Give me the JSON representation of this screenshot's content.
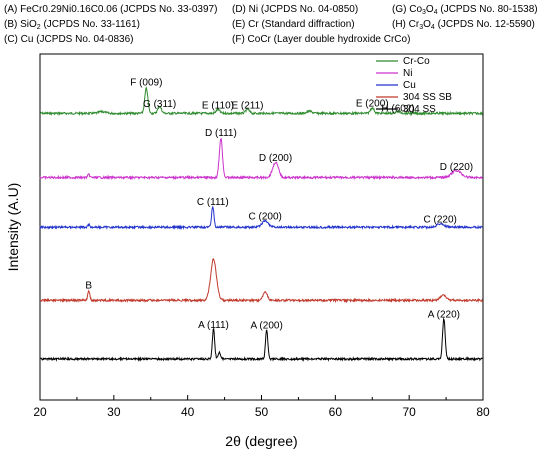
{
  "header_lines": [
    [
      "(A) FeCr0.29Ni0.16C0.06 (JCPDS No. 33-0397)",
      "(D) Ni (JCPDS No. 04-0850)",
      "(G) Co",
      "3",
      "O",
      "4",
      " (JCPDS No. 80-1538)"
    ],
    [
      "(B) SiO",
      "2",
      " (JCPDS No. 33-1161)",
      "(E) Cr (Standard diffraction)",
      "(H) Cr",
      "3",
      "O",
      "4",
      " (JCPDS No. 12-5590)"
    ],
    [
      "(C) Cu (JCPDS No. 04-0836)",
      "(F) CoCr (Layer double hydroxide CrCo)"
    ]
  ],
  "chart_data": {
    "type": "line",
    "xlabel": "2θ (degree)",
    "ylabel": "Intensity (A.U)",
    "xlim": [
      20,
      80
    ],
    "xticks": [
      "20",
      "30",
      "40",
      "50",
      "60",
      "70",
      "80"
    ],
    "yticks_shown": false,
    "legend_position": "top-right",
    "series": [
      {
        "name": "Cr-Co",
        "color": "#2e8b2e",
        "baseline": 0.86,
        "peaks": [
          [
            28.4,
            0.025,
            0.6
          ],
          [
            34.4,
            0.36,
            0.3
          ],
          [
            36.2,
            0.1,
            0.35
          ],
          [
            44.1,
            0.055,
            0.35
          ],
          [
            48.1,
            0.06,
            0.35
          ],
          [
            56.5,
            0.03,
            0.5
          ],
          [
            65.0,
            0.08,
            0.35
          ],
          [
            68.5,
            0.025,
            0.5
          ]
        ]
      },
      {
        "name": "Ni",
        "color": "#cc33cc",
        "baseline": 1.79,
        "peaks": [
          [
            26.6,
            0.04,
            0.2
          ],
          [
            44.5,
            0.57,
            0.3
          ],
          [
            51.9,
            0.22,
            0.55
          ],
          [
            76.4,
            0.1,
            0.9
          ]
        ]
      },
      {
        "name": "Cu",
        "color": "#2233cc",
        "baseline": 2.51,
        "peaks": [
          [
            26.6,
            0.04,
            0.2
          ],
          [
            43.4,
            0.3,
            0.22
          ],
          [
            50.5,
            0.09,
            0.6
          ],
          [
            74.2,
            0.05,
            0.7
          ]
        ]
      },
      {
        "name": "304 SS SB",
        "color": "#c0392b",
        "baseline": 3.57,
        "peaks": [
          [
            26.6,
            0.14,
            0.2
          ],
          [
            43.5,
            0.6,
            0.55
          ],
          [
            50.5,
            0.13,
            0.4
          ],
          [
            74.6,
            0.07,
            0.6
          ]
        ]
      },
      {
        "name": "304 SS",
        "color": "#000000",
        "baseline": 4.42,
        "peaks": [
          [
            43.5,
            0.43,
            0.22
          ],
          [
            44.3,
            0.1,
            0.25
          ],
          [
            50.7,
            0.42,
            0.22
          ],
          [
            74.7,
            0.58,
            0.25
          ]
        ]
      }
    ],
    "annotations": [
      {
        "text": "F (009)",
        "x": 34.4,
        "level": 0.46
      },
      {
        "text": "G (311)",
        "x": 36.2,
        "level": 0.77
      },
      {
        "text": "E (110)",
        "x": 44.1,
        "level": 0.79
      },
      {
        "text": "E (211)",
        "x": 48.1,
        "level": 0.79
      },
      {
        "text": "E (200)",
        "x": 65.0,
        "level": 0.76
      },
      {
        "text": "H (602)",
        "x": 68.5,
        "level": 0.83
      },
      {
        "text": "D (111)",
        "x": 44.5,
        "level": 1.19
      },
      {
        "text": "D (200)",
        "x": 51.9,
        "level": 1.55
      },
      {
        "text": "D (220)",
        "x": 76.4,
        "level": 1.68
      },
      {
        "text": "C (111)",
        "x": 43.4,
        "level": 2.19
      },
      {
        "text": "C (200)",
        "x": 50.5,
        "level": 2.4
      },
      {
        "text": "C (220)",
        "x": 74.2,
        "level": 2.44
      },
      {
        "text": "B",
        "x": 26.6,
        "level": 3.4
      },
      {
        "text": "A (111)",
        "x": 43.5,
        "level": 3.97
      },
      {
        "text": "A (200)",
        "x": 50.7,
        "level": 3.98
      },
      {
        "text": "A (220)",
        "x": 74.7,
        "level": 3.82
      }
    ]
  }
}
